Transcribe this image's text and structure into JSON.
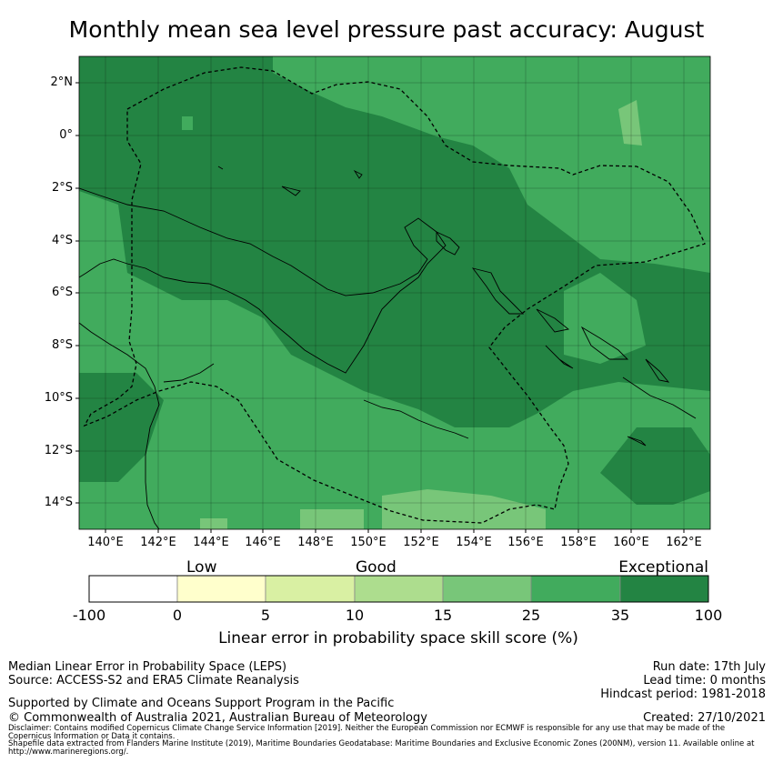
{
  "title": "Monthly mean sea level pressure past accuracy: August",
  "map": {
    "lat_labels": [
      "2°N",
      "0°",
      "2°S",
      "4°S",
      "6°S",
      "8°S",
      "10°S",
      "12°S",
      "14°S"
    ],
    "lon_labels": [
      "140°E",
      "142°E",
      "144°E",
      "146°E",
      "148°E",
      "150°E",
      "152°E",
      "154°E",
      "156°E",
      "158°E",
      "160°E",
      "162°E"
    ],
    "lat_range": [
      -15,
      3
    ],
    "lon_range": [
      139,
      163
    ],
    "gridlines": true
  },
  "colorbar": {
    "categories": [
      {
        "label": "Low",
        "center_value": 0
      },
      {
        "label": "Good",
        "center_value": 10
      },
      {
        "label": "Exceptional",
        "center_value": 35
      }
    ],
    "ticks": [
      "-100",
      "0",
      "5",
      "10",
      "15",
      "25",
      "35",
      "100"
    ],
    "bins": [
      {
        "from": -100,
        "to": 0,
        "color": "#ffffff"
      },
      {
        "from": 0,
        "to": 5,
        "color": "#ffffcc"
      },
      {
        "from": 5,
        "to": 10,
        "color": "#d9f0a3"
      },
      {
        "from": 10,
        "to": 15,
        "color": "#addd8e"
      },
      {
        "from": 15,
        "to": 25,
        "color": "#78c679"
      },
      {
        "from": 25,
        "to": 35,
        "color": "#41ab5d"
      },
      {
        "from": 35,
        "to": 100,
        "color": "#238443"
      }
    ],
    "label": "Linear error in probability space skill score (%)"
  },
  "footer": {
    "left1": "Median Linear Error in Probability Space (LEPS)",
    "left2": "Source: ACCESS-S2 and ERA5 Climate Reanalysis",
    "support": "Supported by Climate and Oceans Support Program in the Pacific",
    "copyright": "© Commonwealth of Australia 2021, Australian Bureau of Meteorology",
    "disclaimer": "Disclaimer: Contains modified Copernicus Climate Change Service Information [2019]. Neither the European Commission nor ECMWF is responsible for any use that may be made of the Copernicus Information or Data it contains.",
    "shapefile": "Shapefile data extracted from Flanders Marine Institute (2019), Maritime Boundaries Geodatabase: Maritime Boundaries and Exclusive Economic Zones (200NM), version 11. Available online at http://www.marineregions.org/.",
    "run_date": "Run date: 17th July",
    "lead_time": "Lead time: 0 months",
    "hindcast": "Hindcast period: 1981-2018",
    "created": "Created: 27/10/2021"
  }
}
